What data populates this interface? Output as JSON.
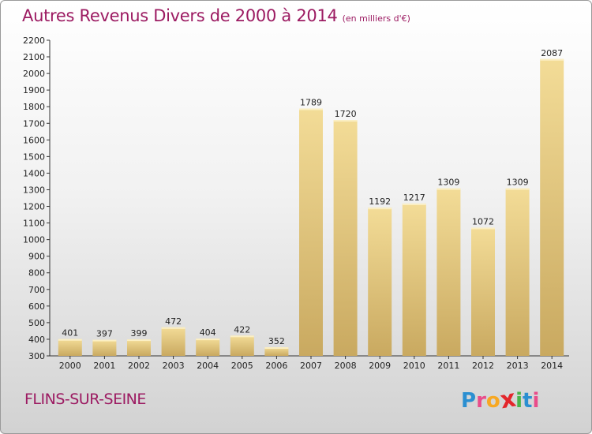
{
  "header": {
    "title": "Autres Revenus Divers de 2000 à 2014",
    "subtitle": "(en milliers d'€)"
  },
  "footer": {
    "place": "FLINS-SUR-SEINE",
    "logo_letters": [
      "P",
      "r",
      "o",
      "x",
      "i",
      "t",
      "i"
    ],
    "logo_colors": [
      "#2b8fd1",
      "#e94c8a",
      "#f7a823",
      "#e3262b",
      "#48b449",
      "#2b8fd1",
      "#e94c8a"
    ]
  },
  "colors": {
    "bar_light": "#f3dc97",
    "bar_dark": "#c9a960",
    "axis": "#333333"
  },
  "chart_data": {
    "type": "bar",
    "title": "Autres Revenus Divers de 2000 à 2014",
    "subtitle": "(en milliers d'€)",
    "categories": [
      "2000",
      "2001",
      "2002",
      "2003",
      "2004",
      "2005",
      "2006",
      "2007",
      "2008",
      "2009",
      "2010",
      "2011",
      "2012",
      "2013",
      "2014"
    ],
    "values": [
      401,
      397,
      399,
      472,
      404,
      422,
      352,
      1789,
      1720,
      1192,
      1217,
      1309,
      1072,
      1309,
      2087
    ],
    "ylim": [
      300,
      2200
    ],
    "yticks": [
      300,
      400,
      500,
      600,
      700,
      800,
      900,
      1000,
      1100,
      1200,
      1300,
      1400,
      1500,
      1600,
      1700,
      1800,
      1900,
      2000,
      2100,
      2200
    ],
    "grid": false,
    "legend": "none"
  }
}
